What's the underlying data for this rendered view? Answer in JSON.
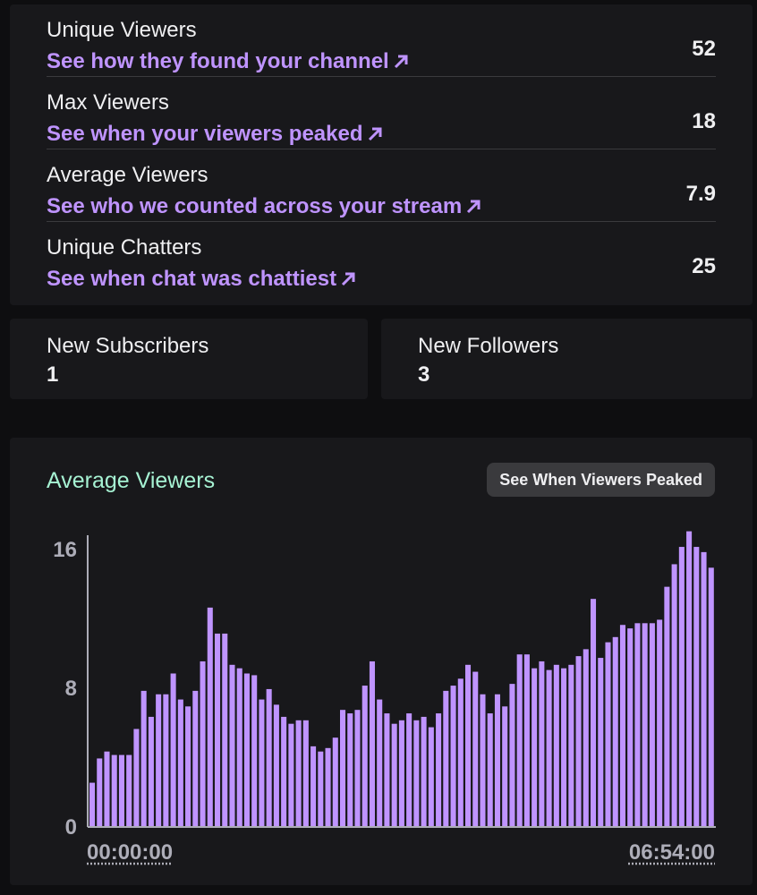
{
  "stats": [
    {
      "title": "Unique Viewers",
      "link": "See how they found your channel",
      "value": "52"
    },
    {
      "title": "Max Viewers",
      "link": "See when your viewers peaked",
      "value": "18"
    },
    {
      "title": "Average Viewers",
      "link": "See who we counted across your stream",
      "value": "7.9"
    },
    {
      "title": "Unique Chatters",
      "link": "See when chat was chattiest",
      "value": "25"
    }
  ],
  "subscribers": {
    "title": "New Subscribers",
    "value": "1"
  },
  "followers": {
    "title": "New Followers",
    "value": "3"
  },
  "chart_section": {
    "title": "Average Viewers",
    "button_label": "See When Viewers Peaked",
    "start_time": "00:00:00",
    "end_time": "06:54:00"
  },
  "colors": {
    "accent": "#bf94ff",
    "chart_title": "#a6f2d3",
    "bar": "#bf94ff"
  },
  "chart_data": {
    "type": "bar",
    "title": "Average Viewers",
    "ylim": [
      0,
      16
    ],
    "yticks": [
      "0",
      "8",
      "16"
    ],
    "x_start": "00:00:00",
    "x_end": "06:54:00",
    "values": [
      2.5,
      3.9,
      4.3,
      4.1,
      4.1,
      4.1,
      5.6,
      7.8,
      6.3,
      7.6,
      7.6,
      8.8,
      7.3,
      6.9,
      7.8,
      9.5,
      12.6,
      11.1,
      11.1,
      9.3,
      9.1,
      8.8,
      8.7,
      7.3,
      7.9,
      7.0,
      6.3,
      5.9,
      6.1,
      6.1,
      4.6,
      4.3,
      4.5,
      5.1,
      6.7,
      6.5,
      6.7,
      8.1,
      9.5,
      7.3,
      6.5,
      5.9,
      6.1,
      6.5,
      6.1,
      6.3,
      5.7,
      6.5,
      7.8,
      8.1,
      8.5,
      9.3,
      8.9,
      7.6,
      6.5,
      7.6,
      6.9,
      8.2,
      9.9,
      9.9,
      9.1,
      9.5,
      9.0,
      9.3,
      9.1,
      9.3,
      9.8,
      10.2,
      13.1,
      9.7,
      10.6,
      10.9,
      11.6,
      11.4,
      11.7,
      11.7,
      11.7,
      11.9,
      13.8,
      15.1,
      16.1,
      17.0,
      16.1,
      15.8,
      14.9
    ]
  }
}
